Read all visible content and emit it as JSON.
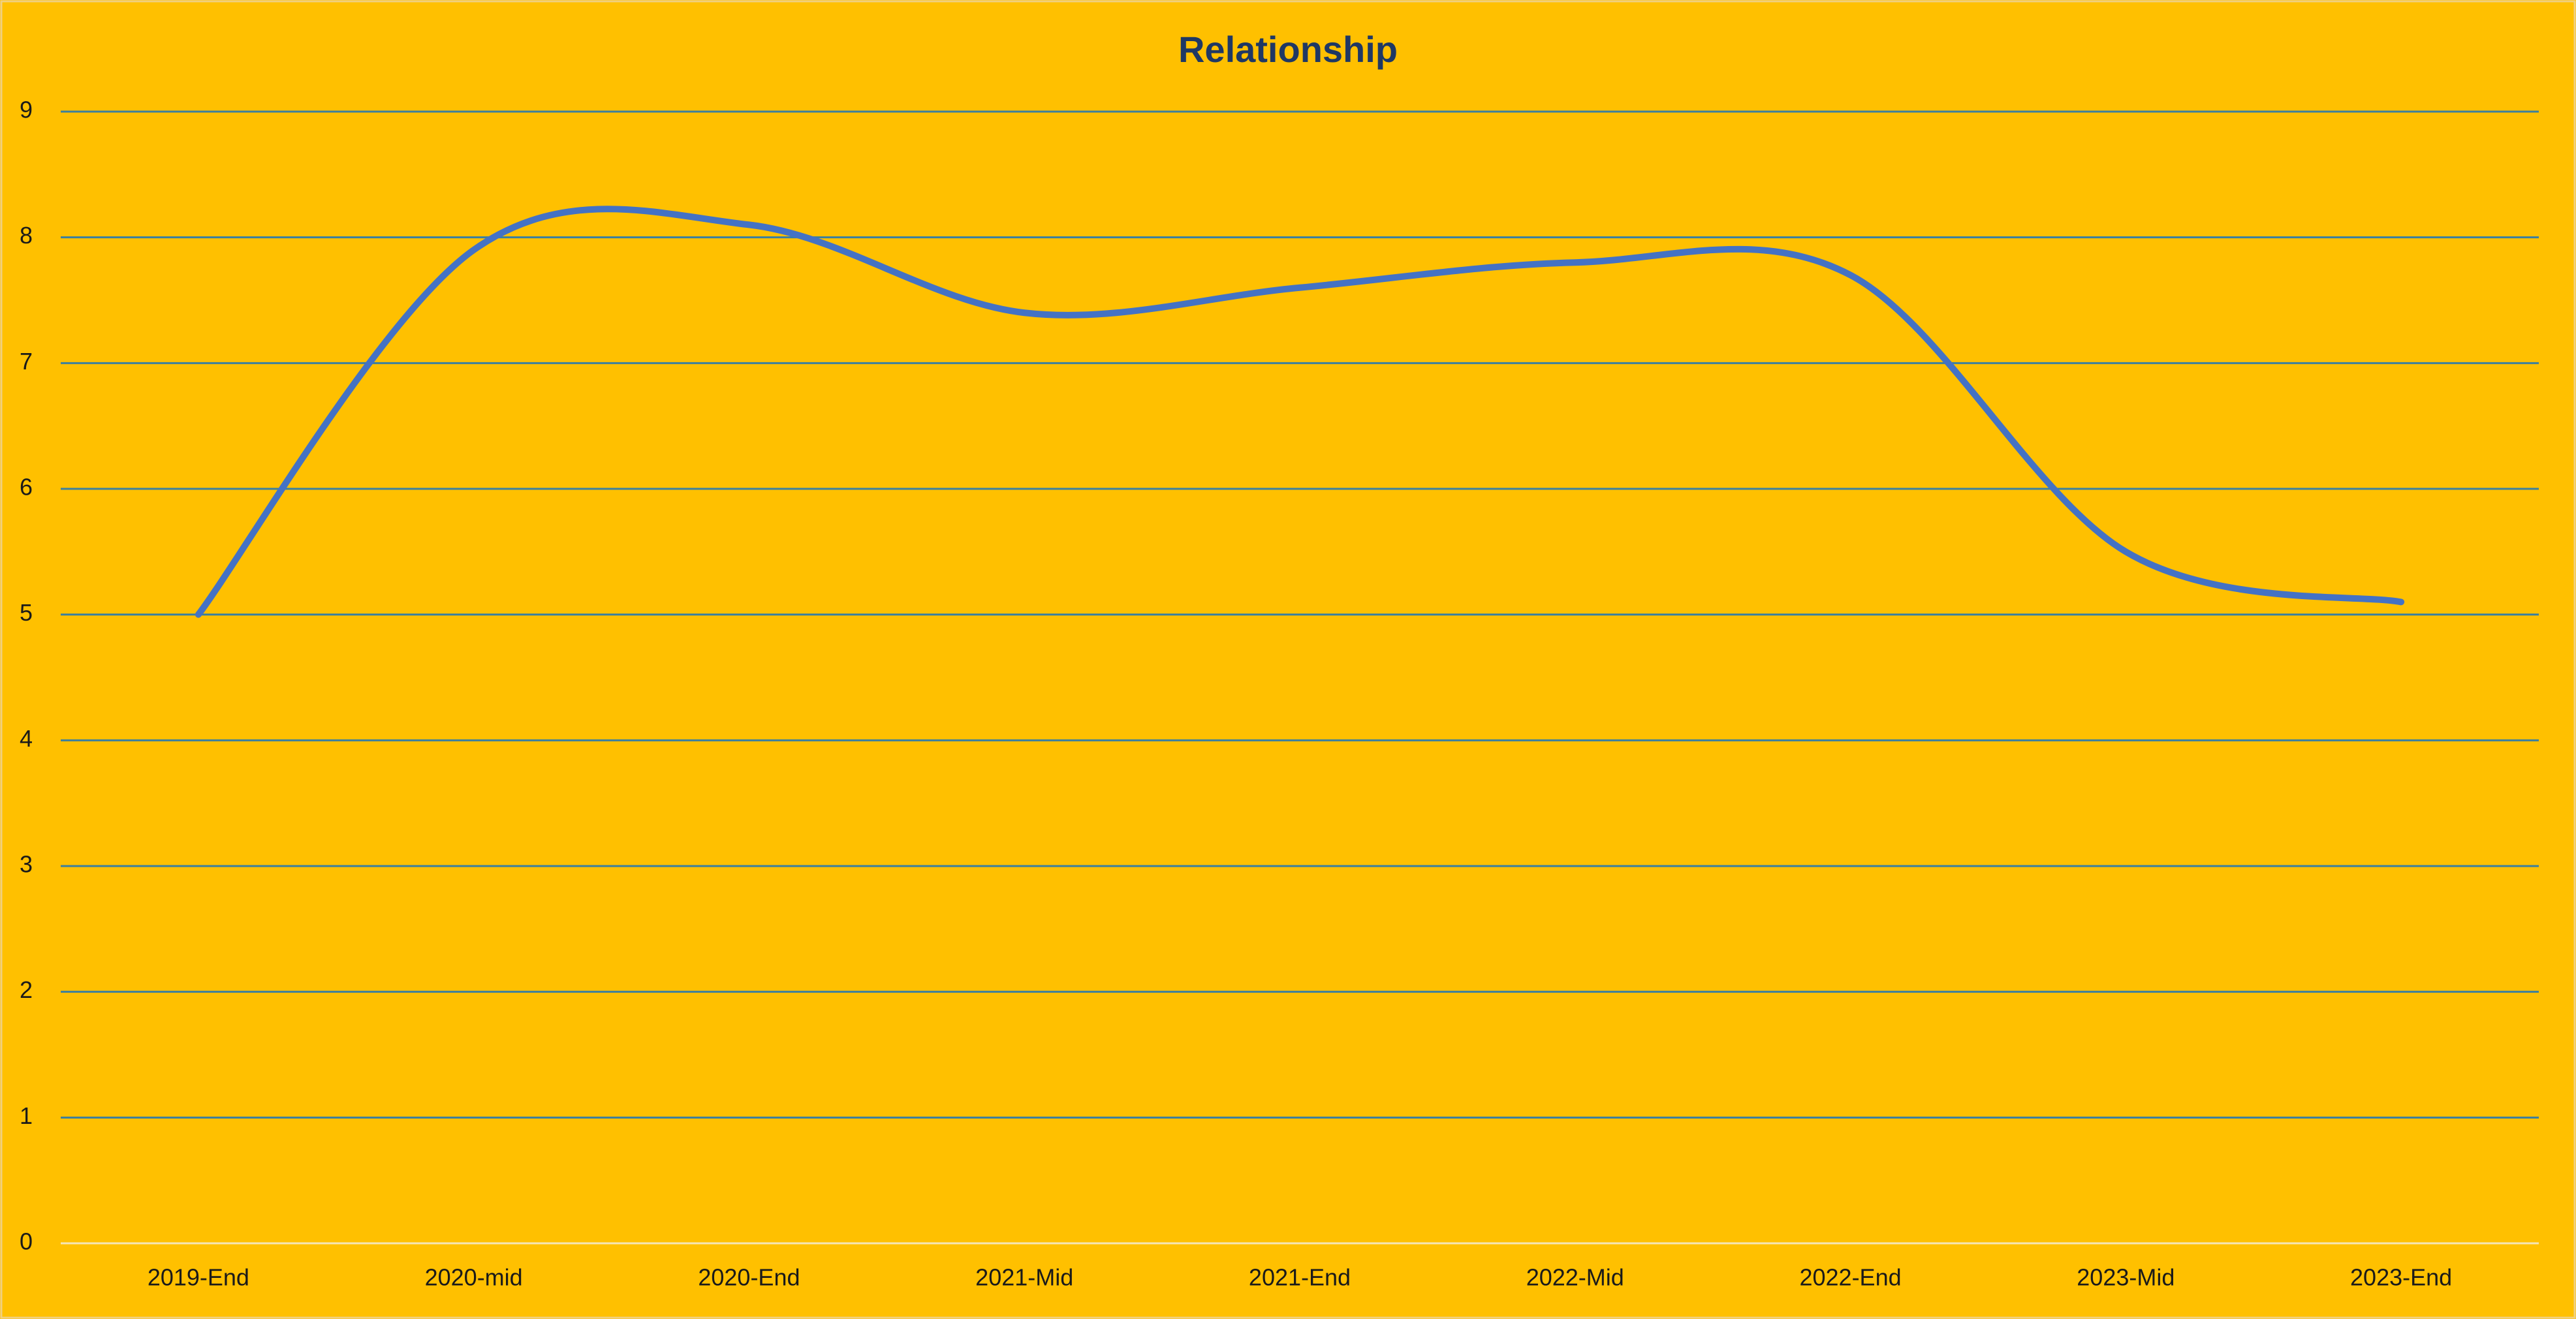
{
  "chart_data": {
    "type": "line",
    "title": "Relationship",
    "categories": [
      "2019-End",
      "2020-mid",
      "2020-End",
      "2021-Mid",
      "2021-End",
      "2022-Mid",
      "2022-End",
      "2023-Mid",
      "2023-End"
    ],
    "series": [
      {
        "name": "Relationship",
        "color": "#4472c4",
        "values": [
          5,
          7.9,
          8.1,
          7.4,
          7.6,
          7.8,
          7.7,
          5.5,
          5.1
        ]
      }
    ],
    "ylim": [
      0,
      9
    ],
    "yticks": [
      0,
      1,
      2,
      3,
      4,
      5,
      6,
      7,
      8,
      9
    ],
    "grid": true,
    "smooth": true
  }
}
